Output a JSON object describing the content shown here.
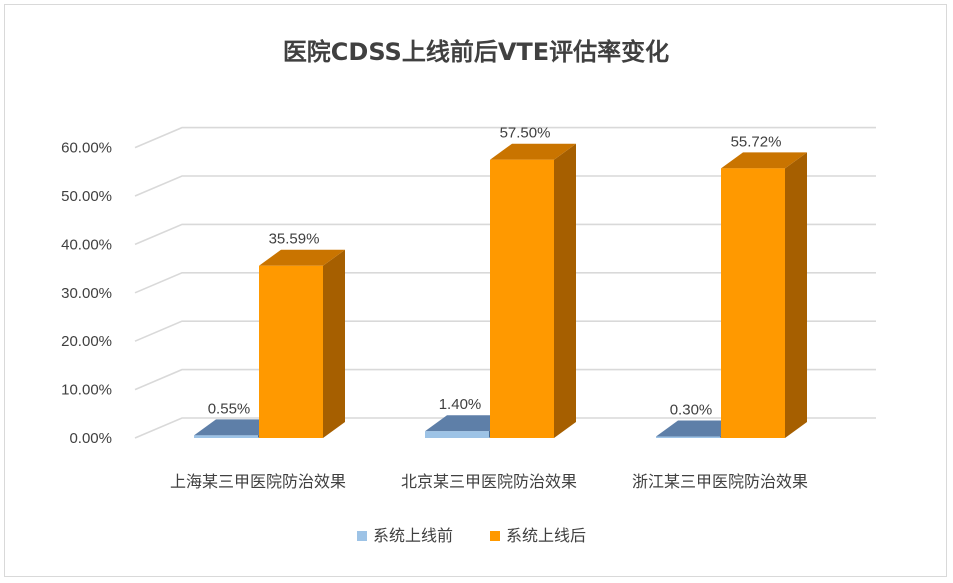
{
  "chart_data": {
    "type": "bar",
    "style": "3d-clustered-column",
    "title": "医院CDSS上线前后VTE评估率变化",
    "categories": [
      "上海某三甲医院防治效果",
      "北京某三甲医院防治效果",
      "浙江某三甲医院防治效果"
    ],
    "series": [
      {
        "name": "系统上线前",
        "values": [
          0.55,
          1.4,
          0.3
        ],
        "labels": [
          "0.55%",
          "1.40%",
          "0.30%"
        ],
        "color": "#9DC3E6"
      },
      {
        "name": "系统上线后",
        "values": [
          35.59,
          57.5,
          55.72
        ],
        "labels": [
          "35.59%",
          "57.50%",
          "55.72%"
        ],
        "color": "#FF9900"
      }
    ],
    "y_ticks": [
      "0.00%",
      "10.00%",
      "20.00%",
      "30.00%",
      "40.00%",
      "50.00%",
      "60.00%"
    ],
    "ylim": [
      0,
      60
    ],
    "grid": true,
    "legend_position": "bottom"
  }
}
